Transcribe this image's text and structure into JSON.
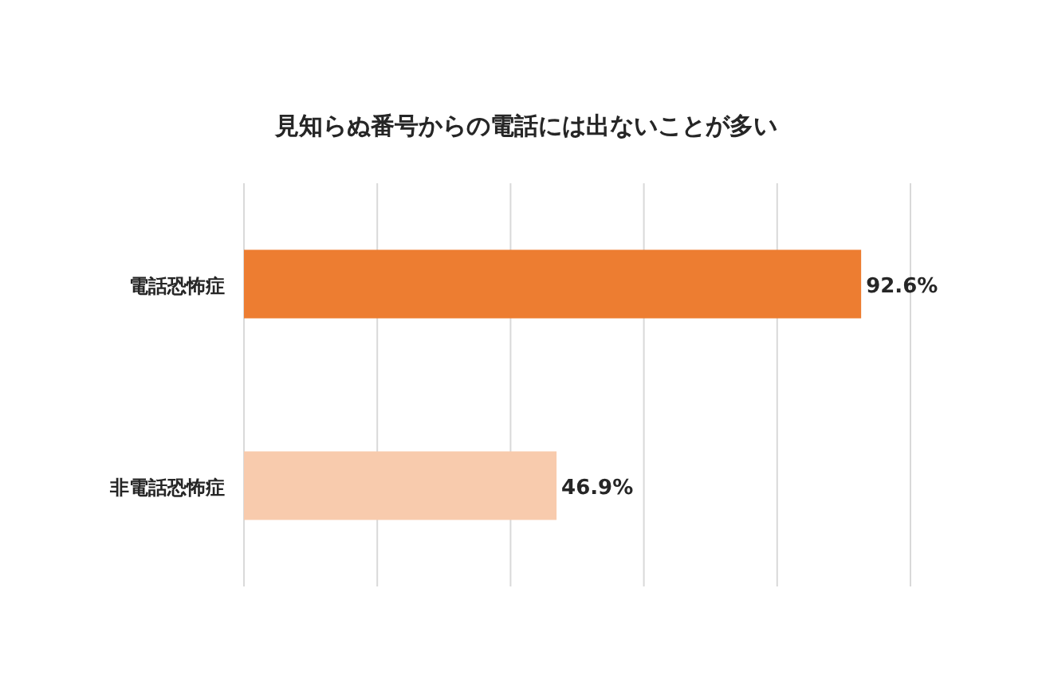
{
  "chart_data": {
    "type": "bar",
    "orientation": "horizontal",
    "title": "見知らぬ番号からの電話には出ないことが多い",
    "categories": [
      "電話恐怖症",
      "非電話恐怖症"
    ],
    "values": [
      92.6,
      46.9
    ],
    "colors": [
      "#ed7d31",
      "#f8cbad"
    ],
    "value_labels": [
      "92.6%",
      "46.9%"
    ],
    "xlim": [
      0,
      100
    ],
    "xticks": [
      {
        "value": 0,
        "label": null
      },
      {
        "value": 20,
        "label": null
      },
      {
        "value": 40,
        "label": null
      },
      {
        "value": 60,
        "label": null
      },
      {
        "value": 80,
        "label": null
      },
      {
        "value": 100,
        "label": null
      }
    ],
    "grid": "x",
    "tick_labels": "y"
  }
}
